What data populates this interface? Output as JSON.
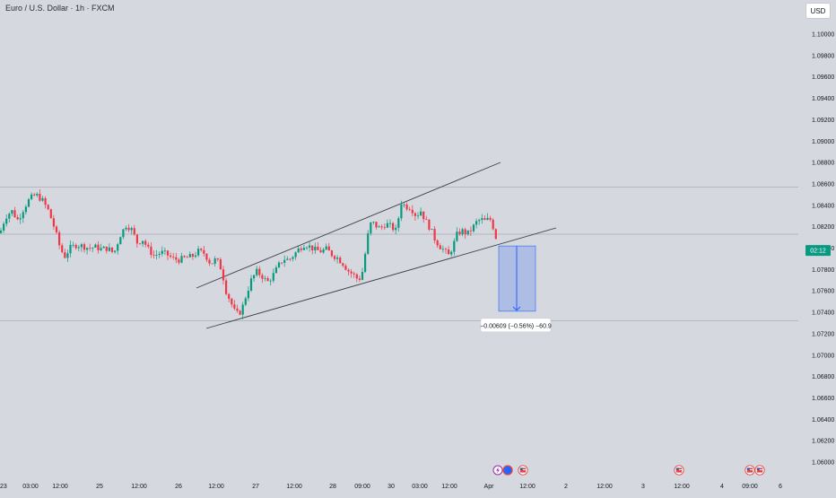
{
  "header": {
    "symbol_title": "Euro / U.S. Dollar · 1h · FXCM",
    "currency_button": "USD"
  },
  "price_axis": {
    "labels": [
      "1.10000",
      "1.09800",
      "1.09600",
      "1.09400",
      "1.09200",
      "1.09000",
      "1.08800",
      "1.08600",
      "1.08400",
      "1.08200",
      "1.08000",
      "1.07800",
      "1.07600",
      "1.07400",
      "1.07200",
      "1.07000",
      "1.06800",
      "1.06600",
      "1.06400",
      "1.06200",
      "1.06000"
    ],
    "current_price_tag": "02:12",
    "current_price_color": "#089981"
  },
  "time_axis": {
    "labels": [
      "23",
      "03:00",
      "12:00",
      "25",
      "12:00",
      "26",
      "12:00",
      "27",
      "12:00",
      "28",
      "09:00",
      "30",
      "03:00",
      "12:00",
      "Apr",
      "12:00",
      "2",
      "12:00",
      "3",
      "12:00",
      "4",
      "09:00",
      "6"
    ]
  },
  "measure_box": {
    "label": "−0.00609 (−0.56%) −60.9",
    "fill_color": "#9fb4e6",
    "line_color": "#2962ff"
  },
  "event_icons": [
    "lightning-icon",
    "economic-event-icon",
    "us-flag-icon",
    "us-flag-icon",
    "us-flag-icon",
    "us-flag-icon"
  ],
  "colors": {
    "background": "#d5d8de",
    "up_candle": "#089981",
    "down_candle": "#f23645",
    "trendline": "#3c4048",
    "horizontal_level": "#a9adb5"
  },
  "chart_data": {
    "type": "candlestick",
    "title": "Euro / U.S. Dollar · 1h · FXCM",
    "ylim": [
      1.0595,
      1.1012
    ],
    "horizontal_levels": [
      1.0857,
      1.0813,
      1.0732
    ],
    "trendlines": [
      {
        "name": "channel-upper",
        "points": [
          [
            "Mar 26 14:00",
            1.0768
          ],
          [
            "Apr 1 03:00",
            1.0882
          ]
        ]
      },
      {
        "name": "channel-lower",
        "points": [
          [
            "Mar 26 13:00",
            1.0718
          ],
          [
            "Apr 1 10:00",
            1.082
          ]
        ]
      }
    ],
    "measurement": {
      "start": 1.0802,
      "end": 1.0741,
      "change": -0.00609,
      "change_pct": -0.56,
      "pips": -60.9
    },
    "price_path": [
      [
        0,
        1.0814
      ],
      [
        6,
        1.0829
      ],
      [
        13,
        1.0835
      ],
      [
        20,
        1.0826
      ],
      [
        27,
        1.0838
      ],
      [
        33,
        1.0846
      ],
      [
        40,
        1.085
      ],
      [
        47,
        1.0845
      ],
      [
        54,
        1.0835
      ],
      [
        61,
        1.0818
      ],
      [
        67,
        1.08
      ],
      [
        72,
        1.0792
      ],
      [
        78,
        1.08
      ],
      [
        85,
        1.0803
      ],
      [
        92,
        1.0802
      ],
      [
        99,
        1.08
      ],
      [
        106,
        1.0801
      ],
      [
        113,
        1.0799
      ],
      [
        120,
        1.08
      ],
      [
        127,
        1.0795
      ],
      [
        134,
        1.0812
      ],
      [
        141,
        1.0822
      ],
      [
        147,
        1.0817
      ],
      [
        153,
        1.0805
      ],
      [
        159,
        1.0808
      ],
      [
        166,
        1.0798
      ],
      [
        172,
        1.0793
      ],
      [
        180,
        1.0796
      ],
      [
        186,
        1.0794
      ],
      [
        193,
        1.079
      ],
      [
        200,
        1.0789
      ],
      [
        207,
        1.0791
      ],
      [
        214,
        1.0792
      ],
      [
        221,
        1.0797
      ],
      [
        228,
        1.0795
      ],
      [
        235,
        1.0785
      ],
      [
        241,
        1.079
      ],
      [
        247,
        1.078
      ],
      [
        252,
        1.076
      ],
      [
        258,
        1.0748
      ],
      [
        263,
        1.0738
      ],
      [
        269,
        1.0741
      ],
      [
        274,
        1.0755
      ],
      [
        280,
        1.077
      ],
      [
        286,
        1.0778
      ],
      [
        292,
        1.0774
      ],
      [
        298,
        1.0768
      ],
      [
        304,
        1.0774
      ],
      [
        310,
        1.0783
      ],
      [
        316,
        1.079
      ],
      [
        322,
        1.0789
      ],
      [
        328,
        1.0794
      ],
      [
        334,
        1.08
      ],
      [
        340,
        1.0804
      ],
      [
        346,
        1.0801
      ],
      [
        352,
        1.0798
      ],
      [
        358,
        1.0797
      ],
      [
        364,
        1.0799
      ],
      [
        370,
        1.0794
      ],
      [
        376,
        1.0791
      ],
      [
        382,
        1.0786
      ],
      [
        388,
        1.0779
      ],
      [
        394,
        1.0775
      ],
      [
        400,
        1.077
      ],
      [
        405,
        1.078
      ],
      [
        409,
        1.0808
      ],
      [
        414,
        1.0825
      ],
      [
        419,
        1.0821
      ],
      [
        424,
        1.0818
      ],
      [
        430,
        1.0823
      ],
      [
        436,
        1.082
      ],
      [
        442,
        1.0816
      ],
      [
        447,
        1.0843
      ],
      [
        452,
        1.0839
      ],
      [
        458,
        1.0838
      ],
      [
        464,
        1.083
      ],
      [
        469,
        1.0835
      ],
      [
        474,
        1.0826
      ],
      [
        480,
        1.0818
      ],
      [
        485,
        1.0808
      ],
      [
        490,
        1.0802
      ],
      [
        495,
        1.0798
      ],
      [
        500,
        1.0793
      ],
      [
        505,
        1.0802
      ],
      [
        510,
        1.0814
      ],
      [
        516,
        1.0816
      ],
      [
        521,
        1.0813
      ],
      [
        526,
        1.0818
      ],
      [
        531,
        1.0824
      ],
      [
        536,
        1.0827
      ],
      [
        541,
        1.0825
      ],
      [
        546,
        1.0828
      ],
      [
        551,
        1.0817
      ],
      [
        555,
        1.0802
      ]
    ]
  }
}
